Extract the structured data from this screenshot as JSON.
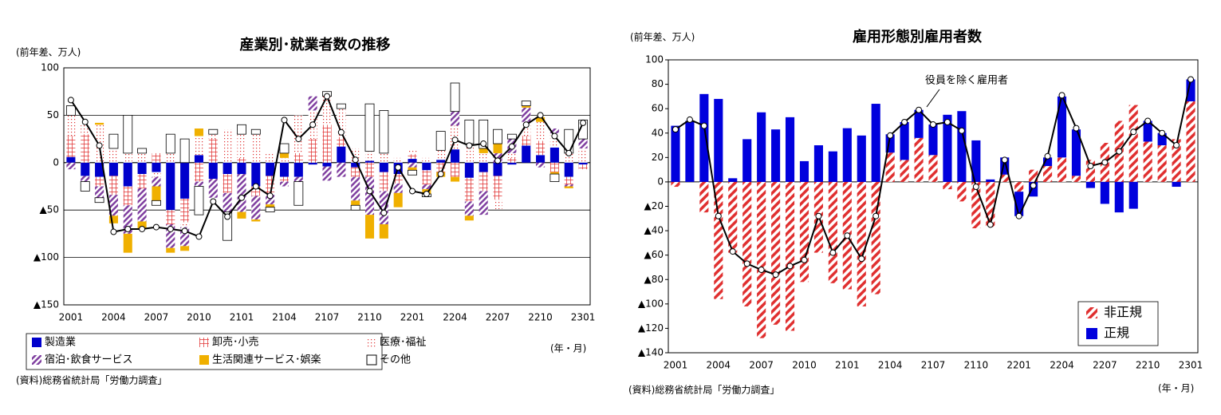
{
  "chart_data": [
    {
      "type": "bar",
      "title": "産業別･就業者数の推移",
      "y_unit": "(前年差、万人)",
      "x_unit": "(年・月)",
      "source": "(資料)総務省統計局「労働力調査」",
      "categories": [
        "2001",
        null,
        null,
        "2004",
        null,
        null,
        "2007",
        null,
        null,
        "2010",
        null,
        null,
        "2101",
        null,
        null,
        "2104",
        null,
        null,
        "2107",
        null,
        null,
        "2110",
        null,
        null,
        "2201",
        null,
        null,
        "2204",
        null,
        null,
        "2207",
        null,
        null,
        "2210",
        null,
        null,
        "2301"
      ],
      "ylim": [
        -150,
        100
      ],
      "yticks": [
        100,
        50,
        0,
        {
          "value": -50,
          "label": "▲50"
        },
        {
          "value": -100,
          "label": "▲100"
        },
        {
          "value": -150,
          "label": "▲150"
        }
      ],
      "grid": true,
      "stacked": true,
      "series": [
        {
          "name": "製造業",
          "color": "#0000cc",
          "pattern": "solid",
          "values": [
            6,
            -14,
            -15,
            -14,
            -25,
            -12,
            -10,
            -50,
            -38,
            8,
            -17,
            -12,
            -12,
            -25,
            -14,
            -15,
            -15,
            -2,
            -4,
            17,
            -5,
            2,
            -10,
            -12,
            4,
            -8,
            3,
            14,
            -16,
            -10,
            -14,
            -2,
            18,
            8,
            16,
            -15,
            -2
          ]
        },
        {
          "name": "卸売･小売",
          "color": "#e03030",
          "pattern": "cross",
          "values": [
            22,
            30,
            -10,
            -20,
            -20,
            -15,
            10,
            -15,
            -25,
            -20,
            25,
            -20,
            5,
            -10,
            -20,
            -5,
            10,
            25,
            40,
            10,
            -10,
            -15,
            -20,
            -10,
            5,
            -15,
            -10,
            -15,
            -25,
            -20,
            -25,
            5,
            10,
            15,
            -10,
            -8,
            -5
          ]
        },
        {
          "name": "医療･福祉",
          "color": "#e03030",
          "pattern": "dots",
          "values": [
            22,
            10,
            40,
            15,
            10,
            10,
            -5,
            10,
            -5,
            20,
            5,
            35,
            25,
            30,
            10,
            5,
            40,
            30,
            30,
            30,
            15,
            10,
            10,
            5,
            5,
            5,
            10,
            25,
            20,
            10,
            -10,
            5,
            15,
            20,
            15,
            10,
            15
          ]
        },
        {
          "name": "宿泊･飲食サービス",
          "color": "#8040a0",
          "pattern": "diag",
          "values": [
            -7,
            -6,
            -12,
            -22,
            -30,
            -35,
            -10,
            -25,
            -20,
            -5,
            -20,
            -20,
            -40,
            -25,
            -10,
            -5,
            -5,
            15,
            -15,
            -15,
            -25,
            -40,
            -35,
            -10,
            -5,
            -5,
            0,
            15,
            -15,
            -25,
            10,
            15,
            15,
            -5,
            5,
            -2,
            10
          ]
        },
        {
          "name": "生活関連サービス･娯楽",
          "color": "#f0b000",
          "pattern": "solid",
          "values": [
            0,
            0,
            2,
            -8,
            -20,
            -8,
            -15,
            -5,
            -5,
            8,
            0,
            0,
            -7,
            -2,
            -3,
            5,
            0,
            0,
            0,
            0,
            -5,
            -25,
            -15,
            -15,
            -3,
            -5,
            -5,
            -5,
            -5,
            5,
            10,
            0,
            2,
            5,
            -2,
            -2,
            0
          ]
        },
        {
          "name": "その他",
          "color": "#ffffff",
          "pattern": "outline",
          "values": [
            10,
            -10,
            -5,
            15,
            40,
            5,
            -5,
            20,
            25,
            -30,
            5,
            -30,
            10,
            5,
            -5,
            10,
            -25,
            0,
            5,
            5,
            -5,
            50,
            45,
            0,
            -5,
            -3,
            20,
            30,
            25,
            30,
            15,
            5,
            5,
            0,
            -8,
            25,
            20
          ]
        }
      ],
      "line": {
        "color": "#000000",
        "values": [
          66,
          43,
          18,
          -73,
          -70,
          -70,
          -68,
          -70,
          -72,
          -78,
          -41,
          -57,
          -37,
          -25,
          -35,
          45,
          25,
          40,
          70,
          32,
          3,
          -30,
          -53,
          -5,
          -30,
          -33,
          -12,
          24,
          18,
          20,
          2,
          17,
          40,
          50,
          28,
          10,
          42
        ]
      }
    },
    {
      "type": "bar",
      "title": "雇用形態別雇用者数",
      "y_unit": "(前年差、万人)",
      "x_unit": "(年・月)",
      "source": "(資料)総務省統計局「労働力調査」",
      "categories": [
        "2001",
        null,
        null,
        "2004",
        null,
        null,
        "2007",
        null,
        null,
        "2010",
        null,
        null,
        "2101",
        null,
        null,
        "2104",
        null,
        null,
        "2107",
        null,
        null,
        "2110",
        null,
        null,
        "2201",
        null,
        null,
        "2204",
        null,
        null,
        "2207",
        null,
        null,
        "2210",
        null,
        null,
        "2301"
      ],
      "ylim": [
        -140,
        100
      ],
      "yticks": [
        100,
        80,
        60,
        40,
        20,
        0,
        {
          "value": -20,
          "label": "▲20"
        },
        {
          "value": -40,
          "label": "▲40"
        },
        {
          "value": -60,
          "label": "▲60"
        },
        {
          "value": -80,
          "label": "▲80"
        },
        {
          "value": -100,
          "label": "▲100"
        },
        {
          "value": -120,
          "label": "▲120"
        },
        {
          "value": -140,
          "label": "▲140"
        }
      ],
      "grid": false,
      "stacked": true,
      "series": [
        {
          "name": "非正規",
          "color": "#e03030",
          "pattern": "diag",
          "values": [
            -4,
            0,
            -25,
            -96,
            -58,
            -102,
            -128,
            -117,
            -122,
            -82,
            -58,
            -83,
            -88,
            -102,
            -92,
            24,
            18,
            36,
            22,
            -6,
            -16,
            -38,
            -37,
            6,
            -8,
            10,
            13,
            20,
            5,
            18,
            32,
            50,
            63,
            33,
            30,
            35,
            66
          ]
        },
        {
          "name": "正規",
          "color": "#0000dd",
          "pattern": "solid",
          "values": [
            46,
            50,
            72,
            68,
            3,
            35,
            57,
            43,
            53,
            17,
            30,
            25,
            44,
            38,
            64,
            15,
            31,
            23,
            25,
            55,
            58,
            34,
            2,
            14,
            -20,
            -12,
            7,
            50,
            38,
            -5,
            -18,
            -25,
            -22,
            17,
            10,
            -4,
            18
          ]
        }
      ],
      "line": {
        "name": "役員を除く雇用者",
        "color": "#000000",
        "values": [
          43,
          51,
          46,
          -28,
          -57,
          -67,
          -72,
          -76,
          -69,
          -64,
          -28,
          -58,
          -44,
          -63,
          -28,
          38,
          49,
          59,
          47,
          49,
          42,
          -4,
          -35,
          18,
          -28,
          -3,
          21,
          71,
          44,
          13,
          16,
          25,
          41,
          50,
          40,
          30,
          84
        ]
      }
    }
  ]
}
